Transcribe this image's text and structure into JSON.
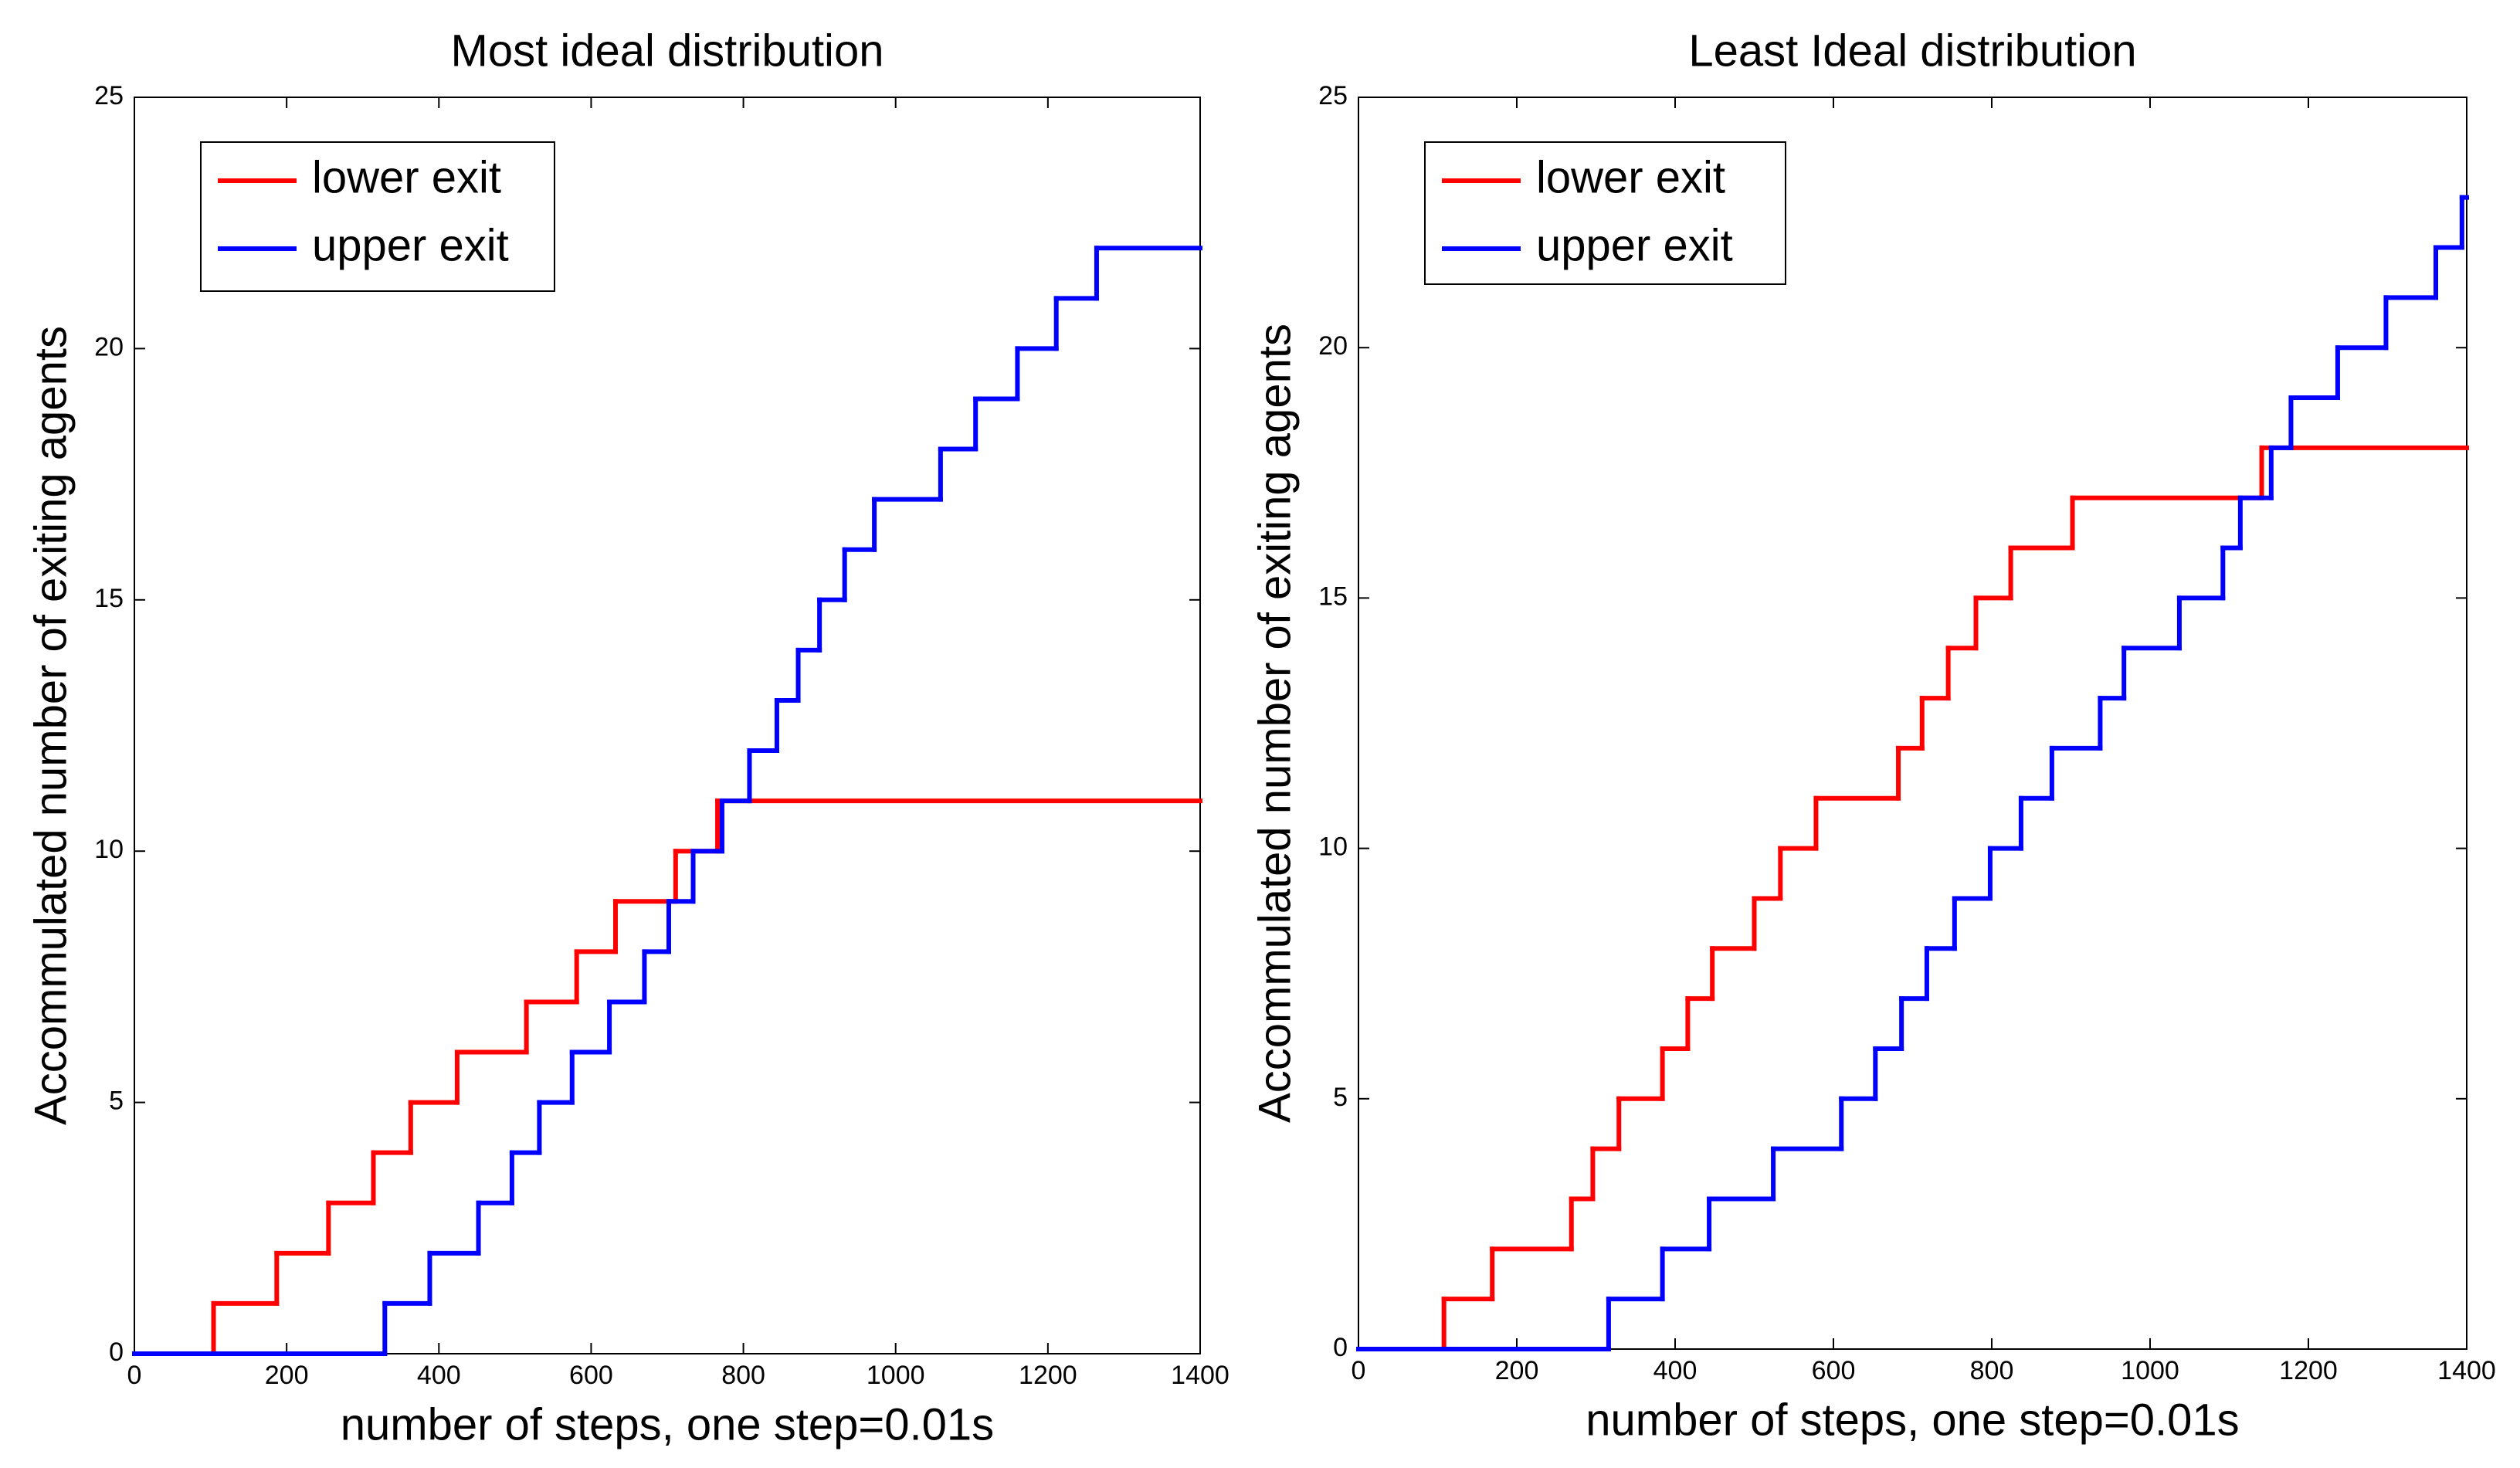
{
  "chart_data": [
    {
      "type": "line",
      "drawstyle": "steps-post",
      "title": "Most ideal distribution",
      "xlabel": "number of steps, one step=0.01s",
      "ylabel": "Accommulated number of exiting agents",
      "xlim": [
        0,
        1400
      ],
      "ylim": [
        0,
        25
      ],
      "xticks": [
        0,
        200,
        400,
        600,
        800,
        1000,
        1200,
        1400
      ],
      "yticks": [
        0,
        5,
        10,
        15,
        20,
        25
      ],
      "legend": "upper left",
      "series": [
        {
          "name": "lower exit",
          "color": "#ff0000",
          "x": [
            0,
            104,
            187,
            255,
            314,
            363,
            424,
            515,
            581,
            632,
            711,
            766,
            1400
          ],
          "values": [
            0,
            1,
            2,
            3,
            4,
            5,
            6,
            7,
            8,
            9,
            10,
            11,
            11
          ]
        },
        {
          "name": "upper exit",
          "color": "#0000ff",
          "x": [
            0,
            329,
            388,
            452,
            496,
            532,
            575,
            624,
            670,
            702,
            734,
            772,
            808,
            844,
            872,
            900,
            933,
            972,
            1059,
            1105,
            1160,
            1211,
            1264,
            1400
          ],
          "values": [
            0,
            1,
            2,
            3,
            4,
            5,
            6,
            7,
            8,
            9,
            10,
            11,
            12,
            13,
            14,
            15,
            16,
            17,
            18,
            19,
            20,
            21,
            22,
            22
          ]
        }
      ]
    },
    {
      "type": "line",
      "drawstyle": "steps-post",
      "title": "Least Ideal distribution",
      "xlabel": "number of steps, one step=0.01s",
      "ylabel": "Accommulated number of exiting agents",
      "xlim": [
        0,
        1400
      ],
      "ylim": [
        0,
        25
      ],
      "xticks": [
        0,
        200,
        400,
        600,
        800,
        1000,
        1200,
        1400
      ],
      "yticks": [
        0,
        5,
        10,
        15,
        20,
        25
      ],
      "legend": "upper left",
      "series": [
        {
          "name": "lower exit",
          "color": "#ff0000",
          "x": [
            0,
            108,
            169,
            269,
            296,
            329,
            384,
            416,
            447,
            500,
            533,
            578,
            682,
            712,
            745,
            780,
            824,
            902,
            1141,
            1400
          ],
          "values": [
            0,
            1,
            2,
            3,
            4,
            5,
            6,
            7,
            8,
            9,
            10,
            11,
            12,
            13,
            14,
            15,
            16,
            17,
            18,
            18
          ]
        },
        {
          "name": "upper exit",
          "color": "#0000ff",
          "x": [
            0,
            316,
            384,
            443,
            524,
            610,
            653,
            686,
            718,
            753,
            798,
            837,
            876,
            937,
            967,
            1037,
            1092,
            1114,
            1153,
            1178,
            1237,
            1298,
            1361,
            1394,
            1400
          ],
          "values": [
            0,
            1,
            2,
            3,
            4,
            5,
            6,
            7,
            8,
            9,
            10,
            11,
            12,
            13,
            14,
            15,
            16,
            17,
            18,
            19,
            20,
            21,
            22,
            23,
            23
          ]
        }
      ]
    }
  ]
}
